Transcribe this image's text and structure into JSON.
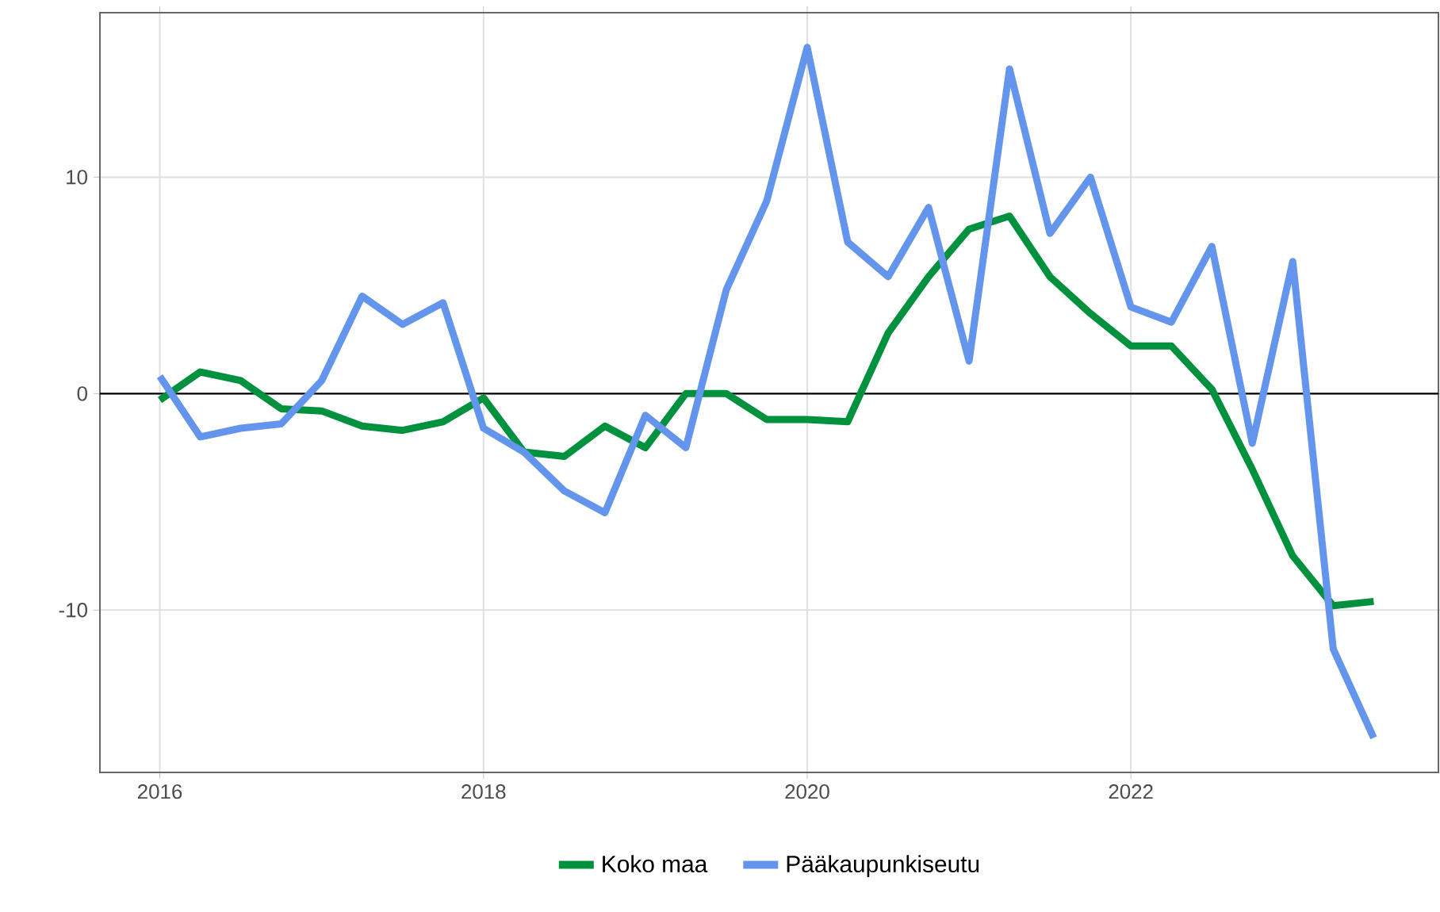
{
  "chart_data": {
    "type": "line",
    "x": [
      2016,
      2016.25,
      2016.5,
      2016.75,
      2017,
      2017.25,
      2017.5,
      2017.75,
      2018,
      2018.25,
      2018.5,
      2018.75,
      2019,
      2019.25,
      2019.5,
      2019.75,
      2020,
      2020.25,
      2020.5,
      2020.75,
      2021,
      2021.25,
      2021.5,
      2021.75,
      2022,
      2022.25,
      2022.5,
      2022.75,
      2023,
      2023.25,
      2023.5
    ],
    "series": [
      {
        "name": "Koko maa",
        "color": "#00913f",
        "values": [
          -0.3,
          1.0,
          0.6,
          -0.7,
          -0.8,
          -1.5,
          -1.7,
          -1.3,
          -0.2,
          -2.7,
          -2.9,
          -1.5,
          -2.5,
          0.0,
          0.0,
          -1.2,
          -1.2,
          -1.3,
          2.8,
          5.4,
          7.6,
          8.2,
          5.4,
          3.7,
          2.2,
          2.2,
          0.2,
          -3.5,
          -7.5,
          -9.8,
          -9.6
        ]
      },
      {
        "name": "Pääkaupunkiseutu",
        "color": "#6495ed",
        "values": [
          0.8,
          -2.0,
          -1.6,
          -1.4,
          0.6,
          4.5,
          3.2,
          4.2,
          -1.6,
          -2.7,
          -4.5,
          -5.5,
          -1.0,
          -2.5,
          4.8,
          8.9,
          16.0,
          7.0,
          5.4,
          8.6,
          1.5,
          15.0,
          7.4,
          10.0,
          4.0,
          3.3,
          6.8,
          -2.3,
          6.1,
          -11.8,
          -15.9
        ]
      }
    ],
    "xlim": [
      2015.63,
      2023.9
    ],
    "ylim": [
      -17.5,
      17.6
    ],
    "xticks": [
      2016,
      2018,
      2020,
      2022
    ],
    "yticks": [
      -10,
      0,
      10
    ],
    "ref_lines": [
      {
        "axis": "y",
        "value": 0,
        "color": "#000000"
      }
    ],
    "grid": true,
    "legend": "bottom",
    "line_style": "solid",
    "marker": "none"
  }
}
